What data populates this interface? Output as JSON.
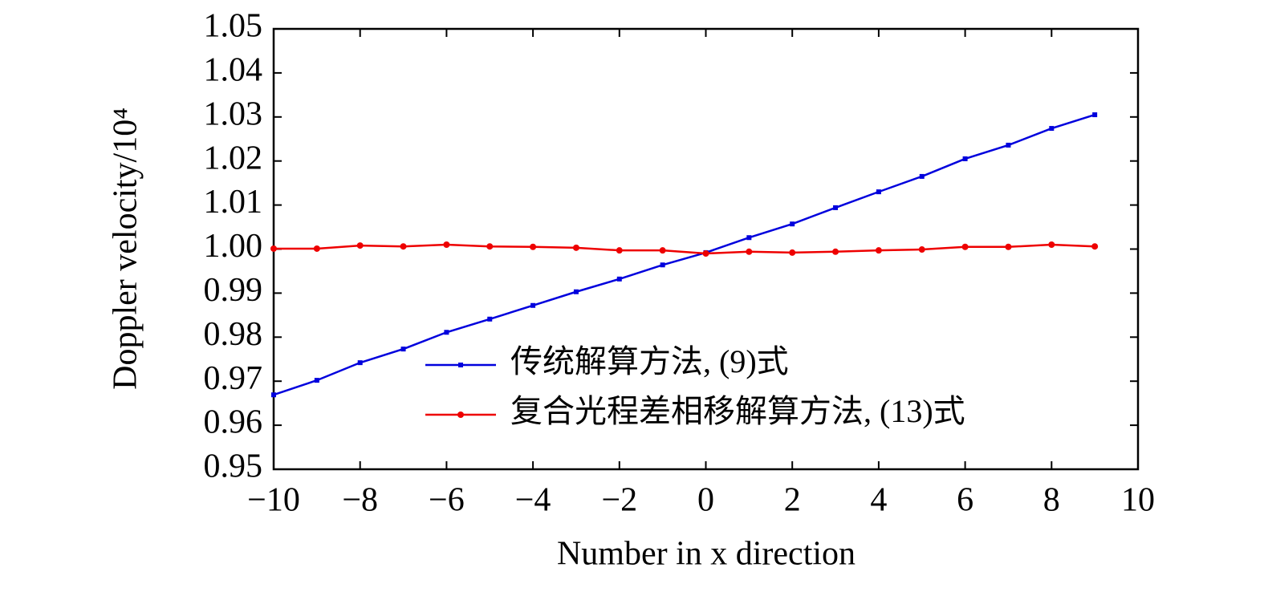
{
  "chart_data": {
    "type": "line",
    "x_label": "Number in x direction",
    "y_label": "Doppler velocity/10⁴",
    "x": [
      -10,
      -9,
      -8,
      -7,
      -6,
      -5,
      -4,
      -3,
      -2,
      -1,
      0,
      1,
      2,
      3,
      4,
      5,
      6,
      7,
      8,
      9
    ],
    "series": [
      {
        "name": "传统解算方法, (9)式",
        "color": "#0000dd",
        "values": [
          0.9669,
          0.9702,
          0.9742,
          0.9773,
          0.9811,
          0.9841,
          0.9872,
          0.9903,
          0.9932,
          0.9964,
          0.9992,
          1.0026,
          1.0057,
          1.0094,
          1.013,
          1.0165,
          1.0205,
          1.0236,
          1.0274,
          1.0305
        ]
      },
      {
        "name": "复合光程差相移解算方法, (13)式",
        "color": "#ee0000",
        "values": [
          1.0001,
          1.0001,
          1.0008,
          1.0006,
          1.001,
          1.0006,
          1.0005,
          1.0003,
          0.9997,
          0.9997,
          0.999,
          0.9994,
          0.9992,
          0.9994,
          0.9997,
          0.9999,
          1.0005,
          1.0005,
          1.001,
          1.0006
        ]
      }
    ],
    "xlim": [
      -10,
      10
    ],
    "xticks": [
      {
        "value": -10,
        "label": "−10"
      },
      {
        "value": -8,
        "label": "−8"
      },
      {
        "value": -6,
        "label": "−6"
      },
      {
        "value": -4,
        "label": "−4"
      },
      {
        "value": -2,
        "label": "−2"
      },
      0,
      2,
      4,
      6,
      8,
      10
    ],
    "ylim": [
      0.95,
      1.05
    ],
    "yticks": [
      0.95,
      0.96,
      0.97,
      0.98,
      0.99,
      {
        "value": 1.0,
        "label": "1.00"
      },
      1.01,
      1.02,
      1.03,
      1.04,
      1.05
    ],
    "grid": false,
    "legend": "lower-center"
  }
}
